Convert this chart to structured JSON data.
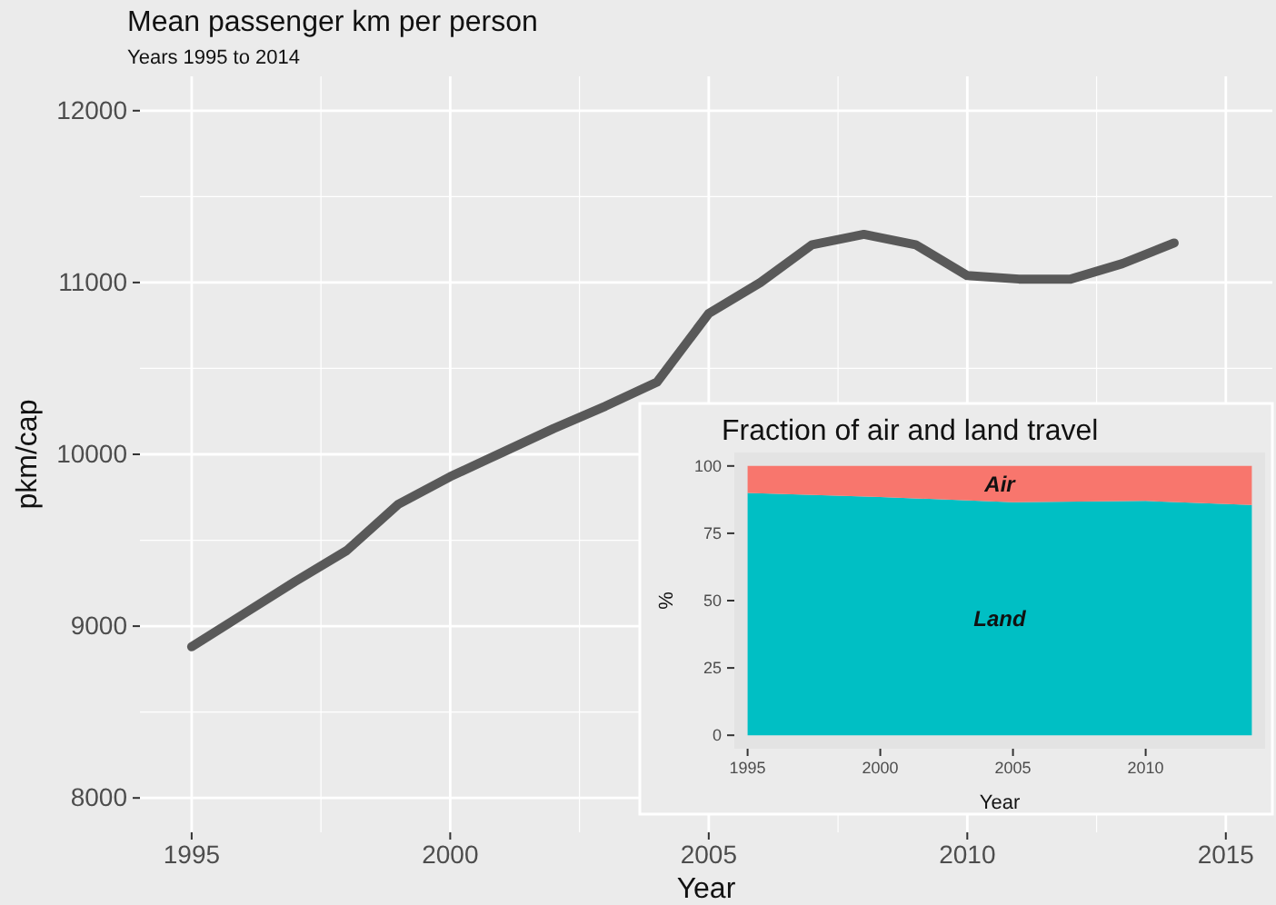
{
  "chart_data": [
    {
      "type": "line",
      "title": "Mean passenger km per person",
      "subtitle": "Years 1995 to 2014",
      "xlabel": "Year",
      "ylabel": "pkm/cap",
      "x": [
        1995,
        1996,
        1997,
        1998,
        1999,
        2000,
        2001,
        2002,
        2003,
        2004,
        2005,
        2006,
        2007,
        2008,
        2009,
        2010,
        2011,
        2012,
        2013,
        2014
      ],
      "series": [
        {
          "color": "#595959",
          "values": [
            8880,
            9070,
            9260,
            9440,
            9710,
            9870,
            10010,
            10150,
            10280,
            10420,
            10820,
            11000,
            11220,
            11280,
            11220,
            11040,
            11020,
            11020,
            11110,
            11230
          ]
        }
      ],
      "xlim": [
        1994,
        2015.9
      ],
      "ylim": [
        7800,
        12200
      ],
      "xticks": [
        1995,
        2000,
        2005,
        2010,
        2015
      ],
      "yticks": [
        8000,
        9000,
        10000,
        11000,
        12000
      ],
      "grid": true,
      "legend": false
    },
    {
      "type": "area",
      "stacked": true,
      "title": "Fraction of air and land travel",
      "xlabel": "Year",
      "ylabel": "%",
      "x": [
        1995,
        2000,
        2005,
        2010,
        2014
      ],
      "series": [
        {
          "name": "Land",
          "color": "#00bfc4",
          "values": [
            90,
            88.5,
            86.5,
            87,
            85.5
          ]
        },
        {
          "name": "Air",
          "color": "#f8766d",
          "values": [
            10,
            11.5,
            13.5,
            13,
            14.5
          ]
        }
      ],
      "xlim": [
        1994.5,
        2014.5
      ],
      "ylim": [
        -5,
        105
      ],
      "xticks": [
        1995,
        2000,
        2005,
        2010
      ],
      "yticks": [
        0,
        25,
        50,
        75,
        100
      ],
      "grid": false,
      "legend": false
    }
  ]
}
